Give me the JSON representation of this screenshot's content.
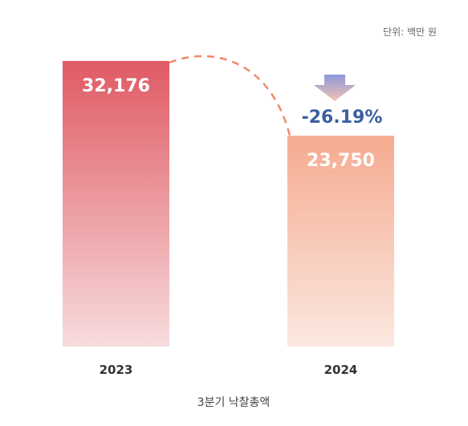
{
  "unit_label": "단위: 백만 원",
  "caption": "3분기 낙찰총액",
  "change_label": "-26.19%",
  "chart_data": {
    "type": "bar",
    "title": "",
    "xlabel": "3분기 낙찰총액",
    "ylabel": "",
    "categories": [
      "2023",
      "2024"
    ],
    "values": [
      32176,
      23750
    ],
    "value_labels": [
      "32,176",
      "23,750"
    ],
    "ylim": [
      0,
      32176
    ],
    "grid": false,
    "legend": "none",
    "change": "-26.19%"
  },
  "colors": {
    "bar_2023_top": "#e05a64",
    "bar_2023_bottom": "#f7dcdd",
    "bar_2024_top": "#f5ab90",
    "bar_2024_bottom": "#fbe8e0",
    "connector": "#ee8a6a",
    "arrow_top": "#8e98d8",
    "arrow_bottom": "#f1c2b3",
    "change_text": "#3a5fa0"
  }
}
